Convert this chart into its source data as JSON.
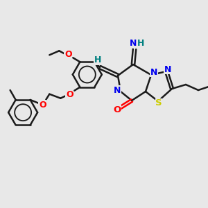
{
  "bg_color": "#e8e8e8",
  "bond_color": "#1a1a1a",
  "bond_width": 1.8,
  "atom_colors": {
    "O": "#ff0000",
    "N": "#0000ee",
    "S": "#cccc00",
    "H_label": "#008080",
    "C": "#1a1a1a"
  },
  "figsize": [
    3.0,
    3.0
  ],
  "dpi": 100
}
